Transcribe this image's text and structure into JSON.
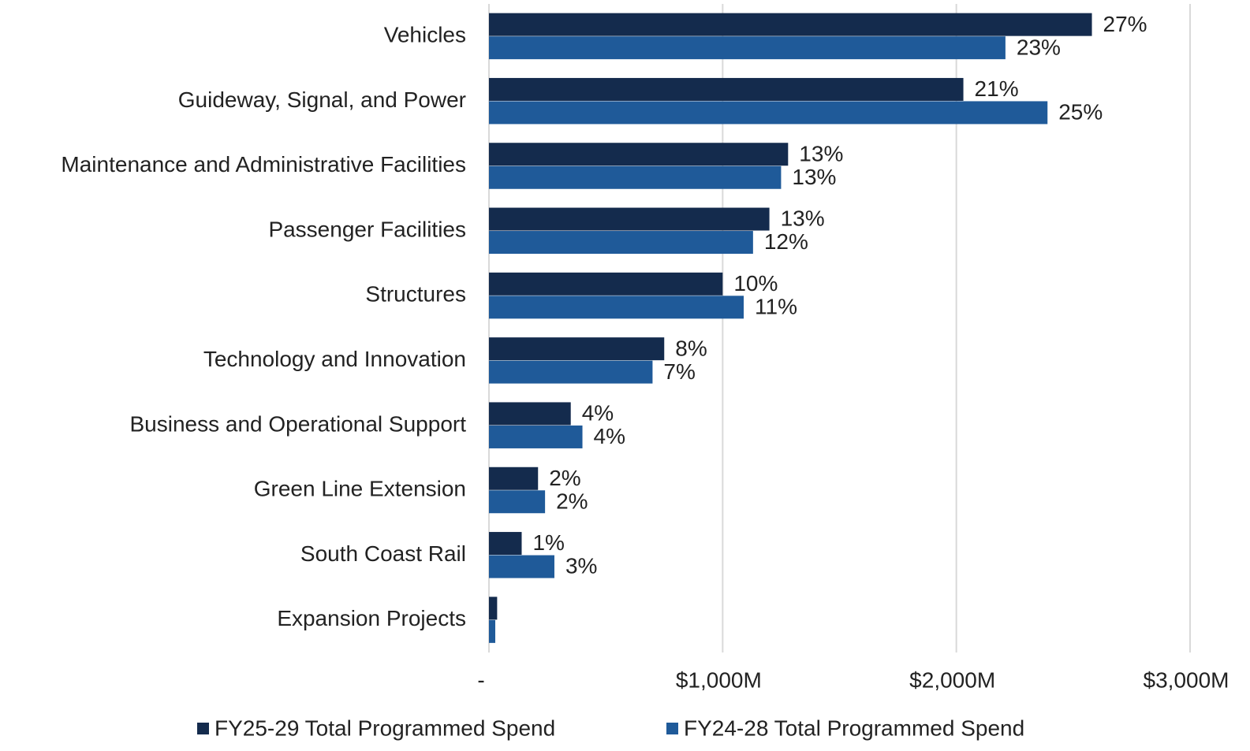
{
  "chart_data": {
    "type": "hbar",
    "categories": [
      "Vehicles",
      "Guideway, Signal, and Power",
      "Maintenance and Administrative Facilities",
      "Passenger Facilities",
      "Structures",
      "Technology and Innovation",
      "Business and Operational Support",
      "Green Line Extension",
      "South Coast Rail",
      "Expansion Projects"
    ],
    "series": [
      {
        "name": "FY25-29 Total Programmed Spend",
        "color": "#142b4d",
        "values": [
          2580,
          2030,
          1280,
          1200,
          1000,
          750,
          350,
          210,
          140,
          35
        ],
        "share_labels": [
          "27%",
          "21%",
          "13%",
          "13%",
          "10%",
          "8%",
          "4%",
          "2%",
          "1%",
          null
        ]
      },
      {
        "name": "FY24-28 Total Programmed Spend",
        "color": "#1f5a99",
        "values": [
          2210,
          2390,
          1250,
          1130,
          1090,
          700,
          400,
          240,
          280,
          27
        ],
        "share_labels": [
          "23%",
          "25%",
          "13%",
          "12%",
          "11%",
          "7%",
          "4%",
          "2%",
          "3%",
          null
        ]
      }
    ],
    "xlim": [
      0,
      3000
    ],
    "xticks": [
      {
        "value": 0,
        "label": "-"
      },
      {
        "value": 1000,
        "label": "$1,000M"
      },
      {
        "value": 2000,
        "label": "$2,000M"
      },
      {
        "value": 3000,
        "label": "$3,000M"
      }
    ],
    "grid": true,
    "legend": "bottom"
  }
}
